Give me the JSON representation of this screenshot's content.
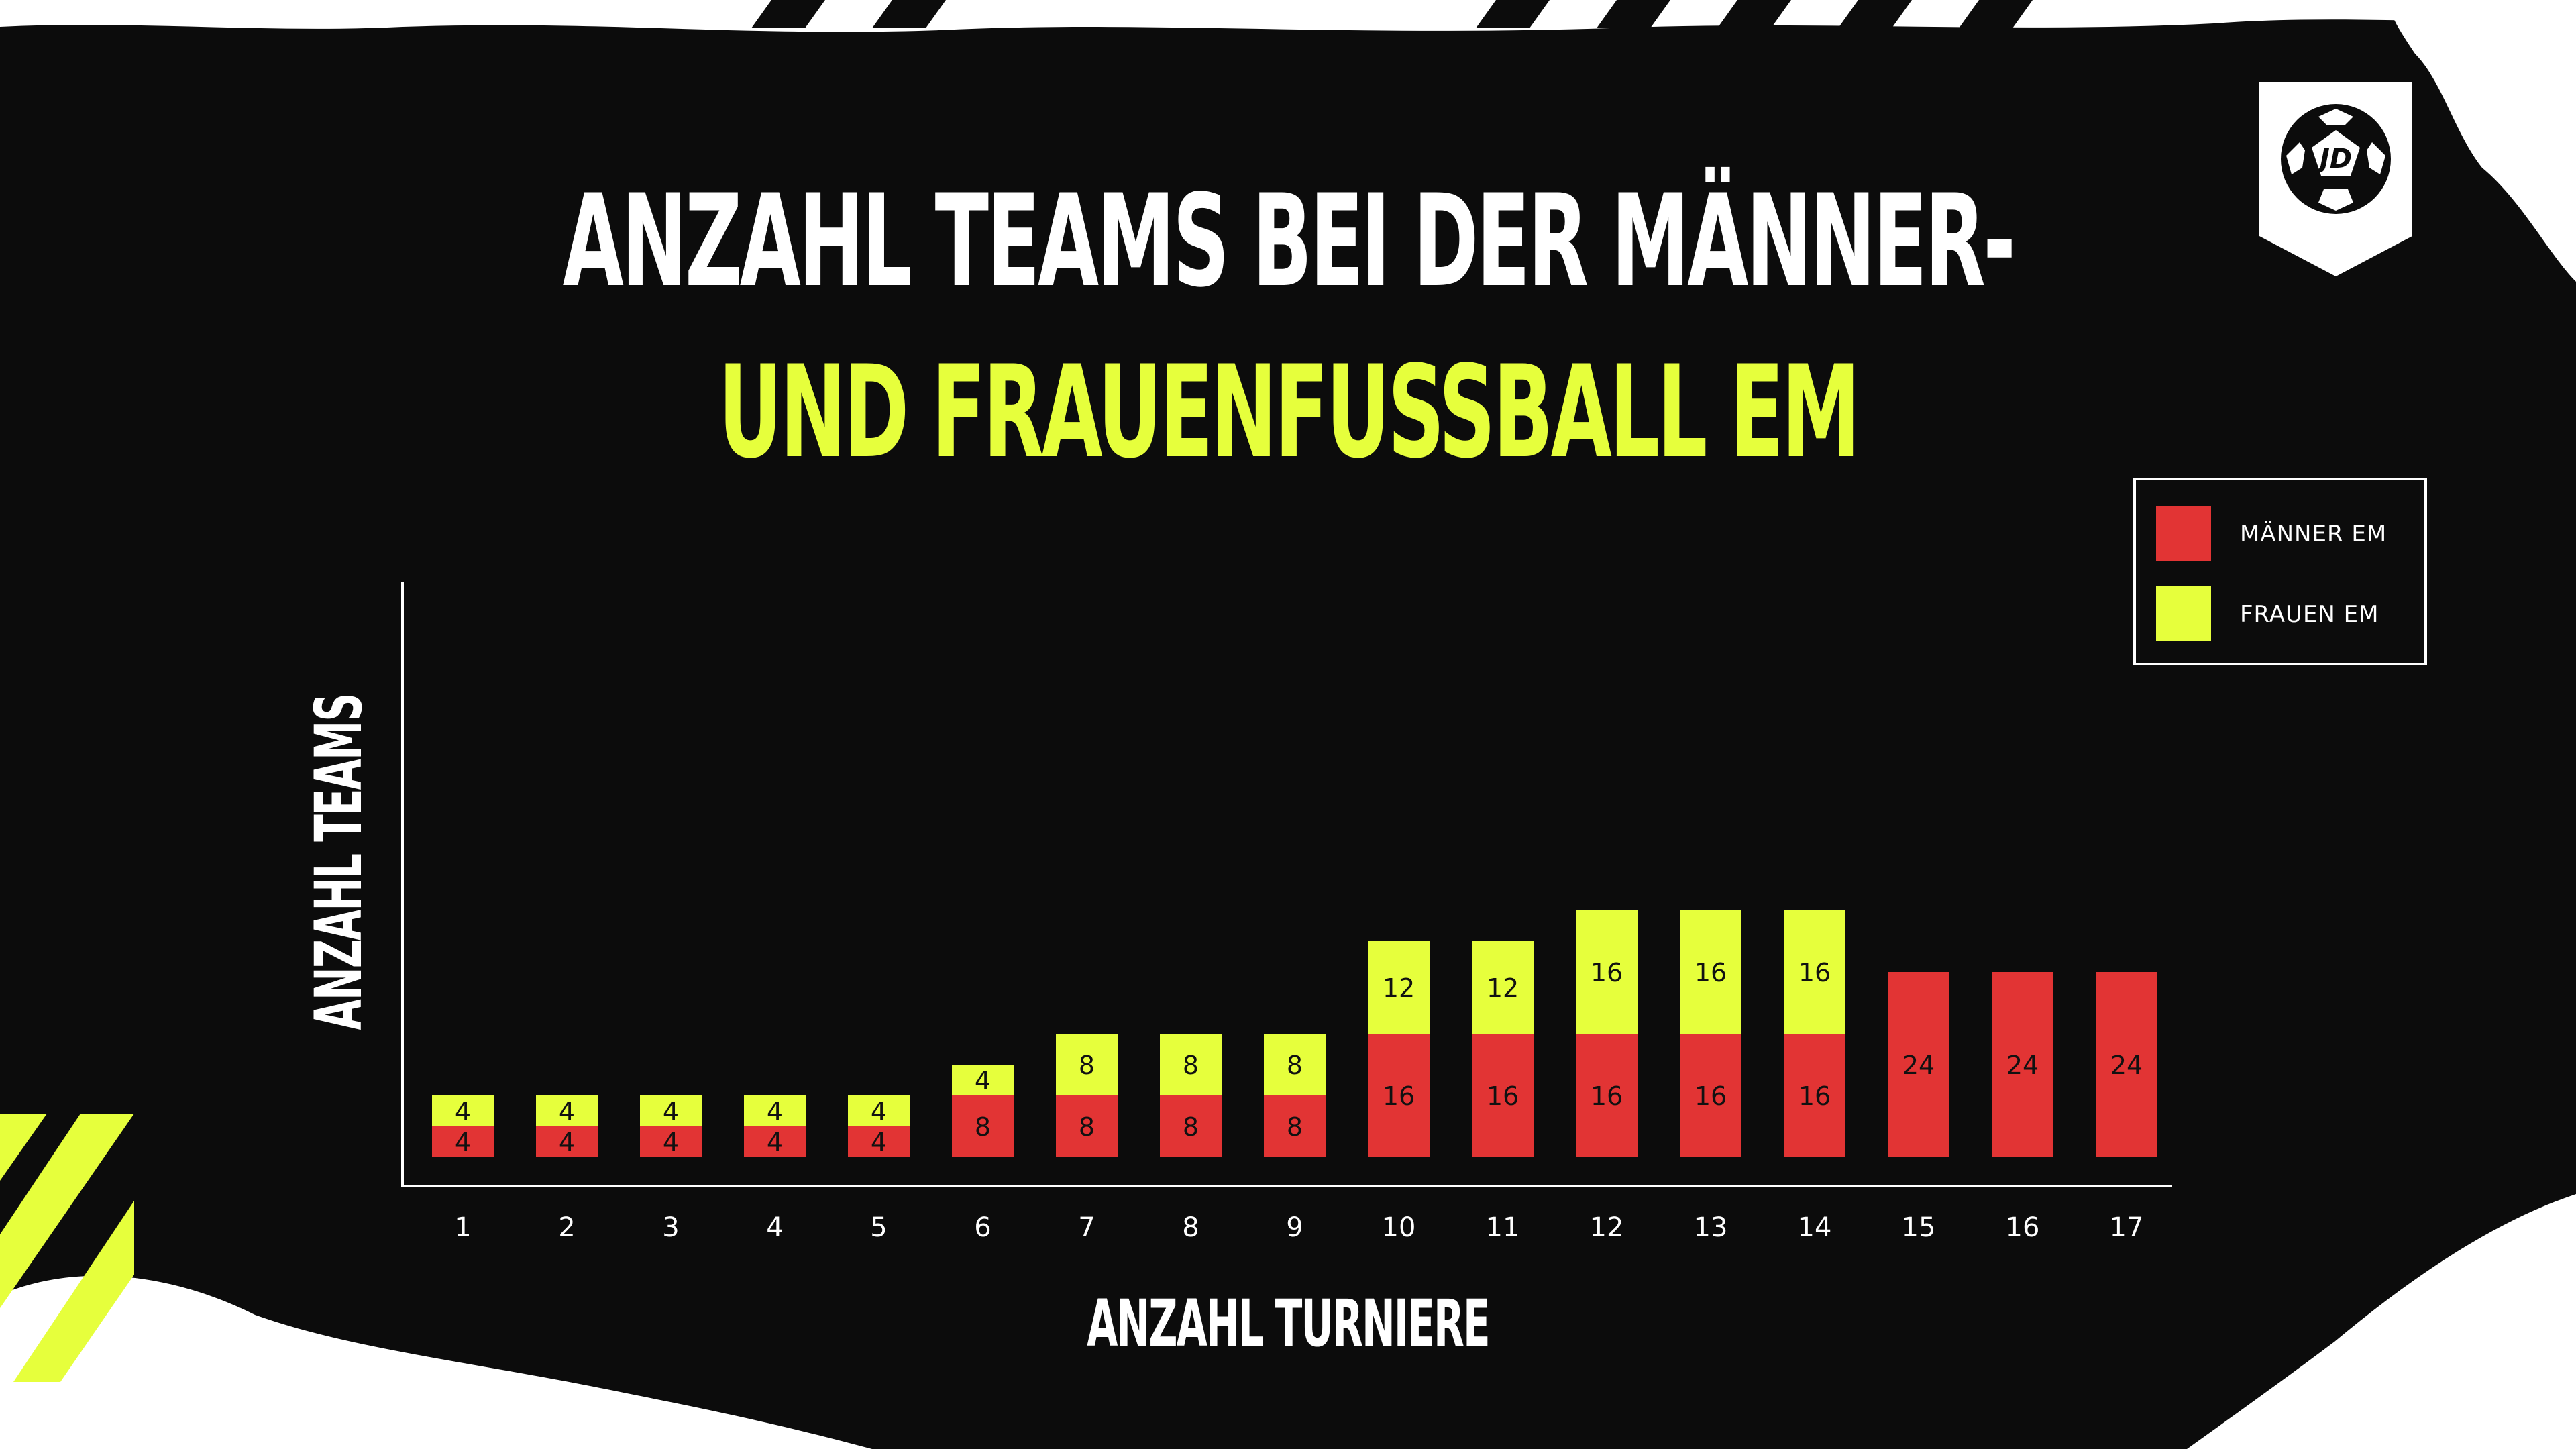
{
  "title": {
    "line1": "ANZAHL TEAMS BEI DER MÄNNER-",
    "line2": "UND FRAUENFUSSBALL EM"
  },
  "logo": {
    "icon": "jd-football-logo-icon",
    "text": "JD"
  },
  "colors": {
    "background": "#0c0c0c",
    "maenner": "#e23434",
    "frauen": "#e6ff3c",
    "axis": "#ffffff",
    "label": "#111111"
  },
  "legend": {
    "items": [
      {
        "label": "MÄNNER EM",
        "color": "#e23434"
      },
      {
        "label": "FRAUEN EM",
        "color": "#e6ff3c"
      }
    ]
  },
  "chart_data": {
    "type": "bar",
    "stacked": true,
    "title": "ANZAHL TEAMS BEI DER MÄNNER- UND FRAUENFUSSBALL EM",
    "xlabel": "ANZAHL TURNIERE",
    "ylabel": "ANZAHL TEAMS",
    "categories": [
      "1",
      "2",
      "3",
      "4",
      "5",
      "6",
      "7",
      "8",
      "9",
      "10",
      "11",
      "12",
      "13",
      "14",
      "15",
      "16",
      "17"
    ],
    "series": [
      {
        "name": "MÄNNER EM",
        "color": "#e23434",
        "values": [
          4,
          4,
          4,
          4,
          4,
          8,
          8,
          8,
          8,
          16,
          16,
          16,
          16,
          16,
          24,
          24,
          24
        ]
      },
      {
        "name": "FRAUEN EM",
        "color": "#e6ff3c",
        "values": [
          4,
          4,
          4,
          4,
          4,
          4,
          8,
          8,
          8,
          12,
          12,
          16,
          16,
          16,
          null,
          null,
          null
        ]
      }
    ],
    "ylim": [
      0,
      40
    ],
    "grid": false,
    "legend_position": "top-right"
  }
}
